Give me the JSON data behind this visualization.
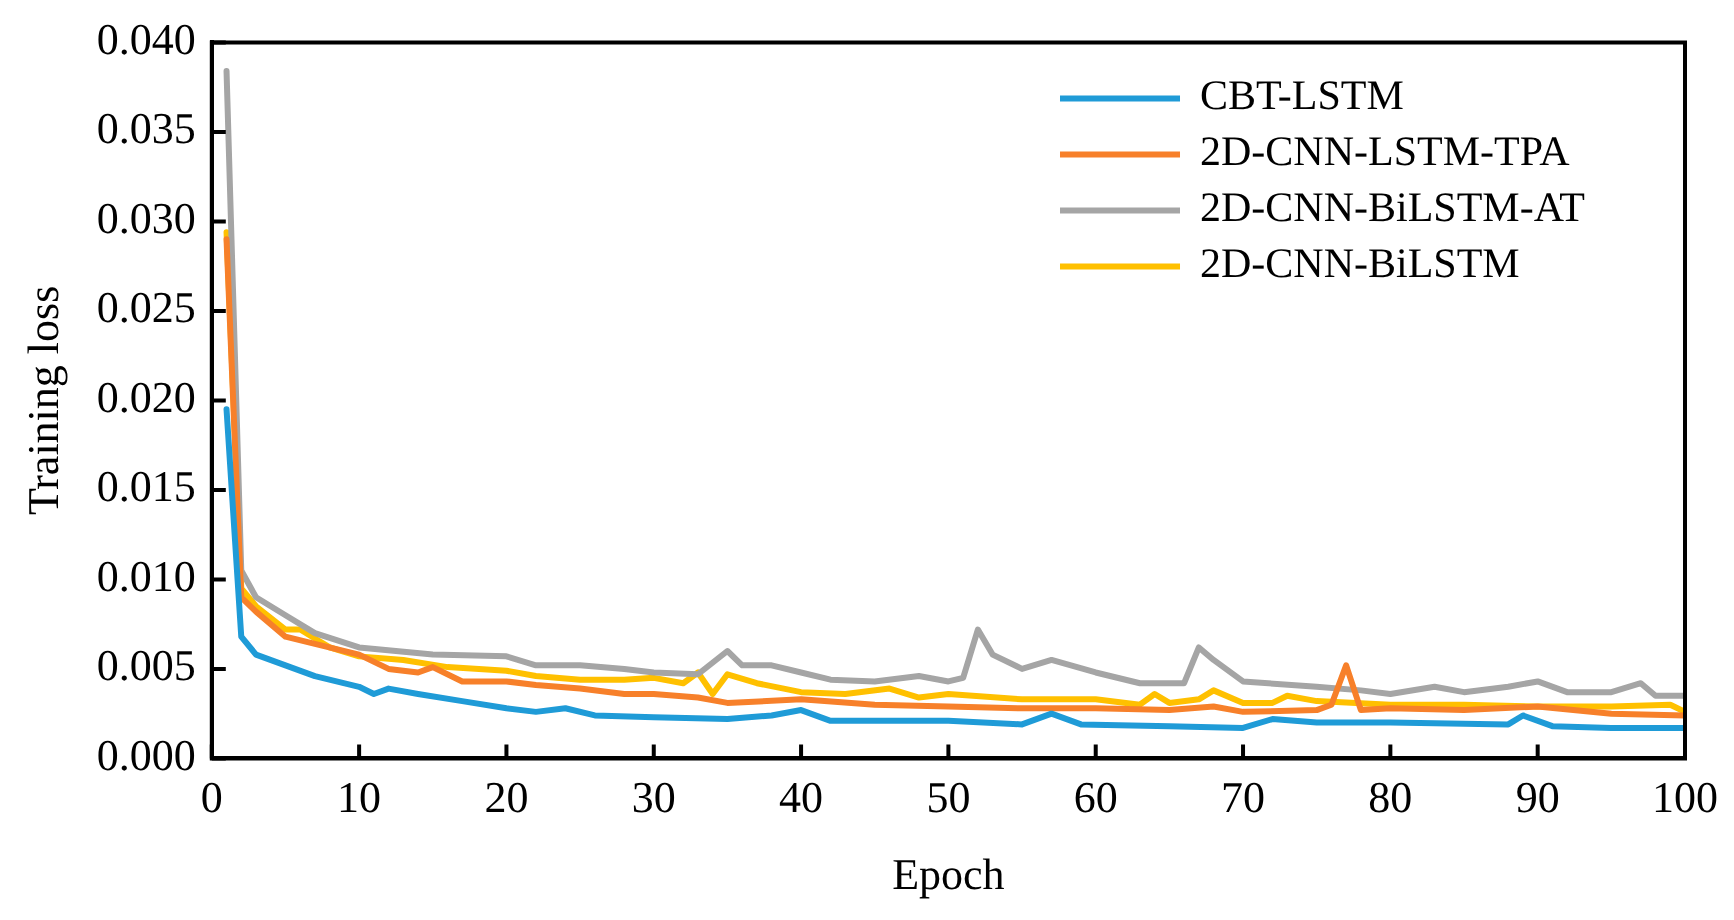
{
  "chart_data": {
    "type": "line",
    "xlabel": "Epoch",
    "ylabel": "Training loss",
    "xlim": [
      0,
      100
    ],
    "xticks": [
      0,
      10,
      20,
      30,
      40,
      50,
      60,
      70,
      80,
      90,
      100
    ],
    "ylim": [
      0,
      0.04
    ],
    "yticks": [
      {
        "value": 0,
        "label": "0.000"
      },
      {
        "value": 0.005,
        "label": "0.005"
      },
      {
        "value": 0.01,
        "label": "0.010"
      },
      {
        "value": 0.015,
        "label": "0.015"
      },
      {
        "value": 0.02,
        "label": "0.020"
      },
      {
        "value": 0.025,
        "label": "0.025"
      },
      {
        "value": 0.03,
        "label": "0.030"
      },
      {
        "value": 0.035,
        "label": "0.035"
      },
      {
        "value": 0.04,
        "label": "0.040"
      }
    ],
    "grid": false,
    "legend": "top right",
    "marker": "none",
    "line_style": "solid",
    "series": [
      {
        "name": "CBT-LSTM",
        "color": "#1f9bd7",
        "x": [
          1,
          2,
          3,
          5,
          7,
          10,
          11,
          12,
          14,
          17,
          20,
          22,
          24,
          26,
          30,
          35,
          38,
          40,
          42,
          50,
          55,
          57,
          59,
          65,
          70,
          72,
          75,
          80,
          88,
          89,
          91,
          95,
          100
        ],
        "values": [
          0.0195,
          0.0068,
          0.0058,
          0.0052,
          0.0046,
          0.004,
          0.0036,
          0.0039,
          0.0036,
          0.0032,
          0.0028,
          0.0026,
          0.0028,
          0.0024,
          0.0023,
          0.0022,
          0.0024,
          0.0027,
          0.0021,
          0.0021,
          0.0019,
          0.0025,
          0.0019,
          0.0018,
          0.0017,
          0.0022,
          0.002,
          0.002,
          0.0019,
          0.0024,
          0.0018,
          0.0017,
          0.0017
        ]
      },
      {
        "name": "2D-CNN-LSTM-TPA",
        "color": "#f7802a",
        "x": [
          1,
          2,
          3,
          5,
          7,
          10,
          12,
          14,
          15,
          17,
          20,
          22,
          25,
          28,
          30,
          33,
          35,
          40,
          45,
          50,
          55,
          60,
          65,
          68,
          70,
          75,
          76,
          77,
          78,
          80,
          85,
          90,
          95,
          100
        ],
        "values": [
          0.029,
          0.009,
          0.0082,
          0.0068,
          0.0064,
          0.0058,
          0.005,
          0.0048,
          0.0051,
          0.0043,
          0.0043,
          0.0041,
          0.0039,
          0.0036,
          0.0036,
          0.0034,
          0.0031,
          0.0033,
          0.003,
          0.0029,
          0.0028,
          0.0028,
          0.0027,
          0.0029,
          0.0026,
          0.0027,
          0.003,
          0.0052,
          0.0027,
          0.0028,
          0.0027,
          0.0029,
          0.0025,
          0.0024
        ]
      },
      {
        "name": "2D-CNN-BiLSTM-AT",
        "color": "#a5a5a5",
        "x": [
          1,
          2,
          3,
          5,
          7,
          10,
          15,
          20,
          22,
          25,
          28,
          30,
          33,
          35,
          36,
          38,
          40,
          42,
          45,
          48,
          50,
          51,
          52,
          53,
          55,
          57,
          60,
          63,
          66,
          67,
          68,
          70,
          75,
          78,
          80,
          83,
          85,
          88,
          90,
          92,
          95,
          97,
          98,
          100
        ],
        "values": [
          0.0384,
          0.0105,
          0.009,
          0.008,
          0.007,
          0.0062,
          0.0058,
          0.0057,
          0.0052,
          0.0052,
          0.005,
          0.0048,
          0.0047,
          0.006,
          0.0052,
          0.0052,
          0.0048,
          0.0044,
          0.0043,
          0.0046,
          0.0043,
          0.0045,
          0.0072,
          0.0058,
          0.005,
          0.0055,
          0.0048,
          0.0042,
          0.0042,
          0.0062,
          0.0055,
          0.0043,
          0.004,
          0.0038,
          0.0036,
          0.004,
          0.0037,
          0.004,
          0.0043,
          0.0037,
          0.0037,
          0.0042,
          0.0035,
          0.0035
        ]
      },
      {
        "name": "2D-CNN-BiLSTM",
        "color": "#ffc000",
        "x": [
          1,
          2,
          3,
          5,
          6,
          7,
          8,
          10,
          13,
          16,
          20,
          22,
          25,
          28,
          30,
          32,
          33,
          34,
          35,
          37,
          40,
          43,
          46,
          48,
          50,
          55,
          60,
          63,
          64,
          65,
          67,
          68,
          70,
          72,
          73,
          75,
          80,
          85,
          90,
          95,
          99,
          100
        ],
        "values": [
          0.0294,
          0.0095,
          0.0085,
          0.0072,
          0.0072,
          0.0067,
          0.0062,
          0.0057,
          0.0055,
          0.0051,
          0.0049,
          0.0046,
          0.0044,
          0.0044,
          0.0045,
          0.0042,
          0.0048,
          0.0036,
          0.0047,
          0.0042,
          0.0037,
          0.0036,
          0.0039,
          0.0034,
          0.0036,
          0.0033,
          0.0033,
          0.003,
          0.0036,
          0.0031,
          0.0033,
          0.0038,
          0.0031,
          0.0031,
          0.0035,
          0.0032,
          0.003,
          0.003,
          0.0029,
          0.0029,
          0.003,
          0.0026
        ]
      }
    ]
  }
}
